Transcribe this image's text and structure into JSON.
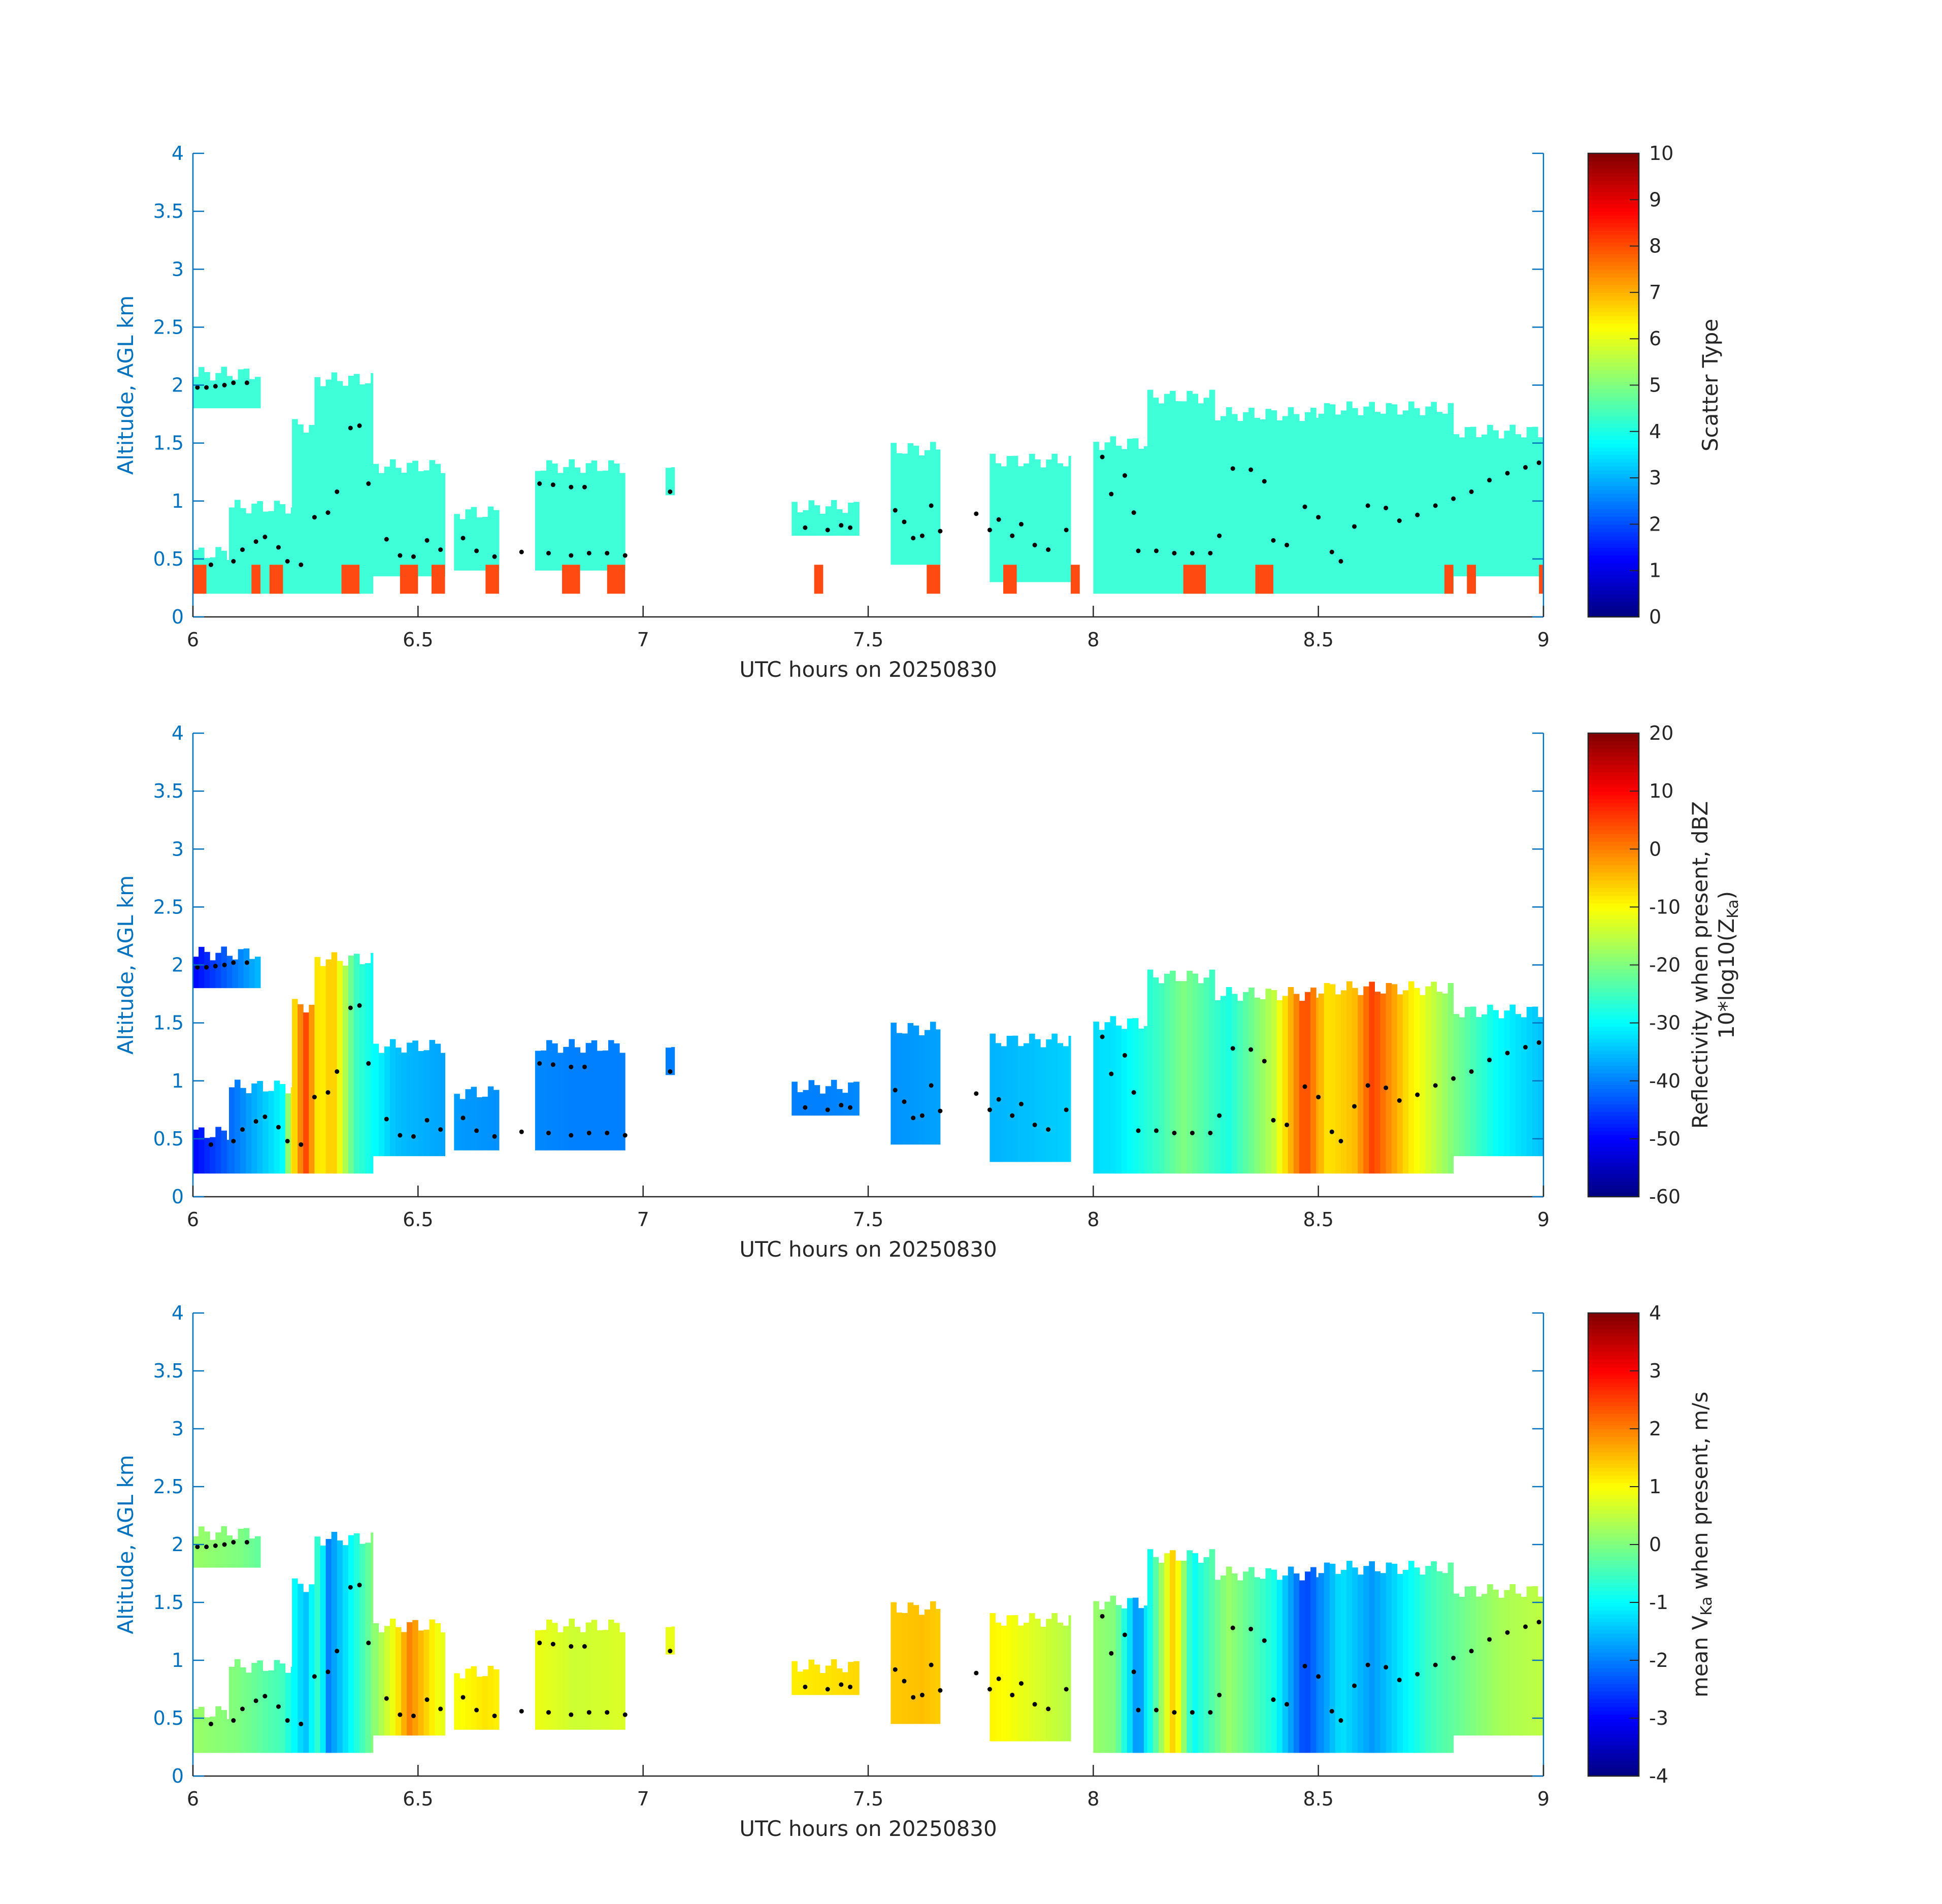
{
  "colors": {
    "axis_y": "#0072BD",
    "axis_x": "#262626",
    "scatter_fill": "#3FFFD9",
    "surface_fill": "#FF4A12",
    "marker": "#000000",
    "colormap": "jet"
  },
  "chart_data": [
    {
      "type": "heatmap",
      "xlabel": "UTC hours on 20250830",
      "ylabel": "Altitude, AGL km",
      "xlim": [
        6,
        9
      ],
      "ylim": [
        0,
        4
      ],
      "xticks": [
        "6",
        "6.5",
        "7",
        "7.5",
        "8",
        "8.5",
        "9"
      ],
      "yticks": [
        "0",
        "0.5",
        "1",
        "1.5",
        "2",
        "2.5",
        "3",
        "3.5",
        "4"
      ],
      "colorbar": {
        "label": "Scatter Type",
        "range": [
          0,
          10
        ],
        "ticks": [
          "0",
          "1",
          "2",
          "3",
          "4",
          "5",
          "6",
          "7",
          "8",
          "9",
          "10"
        ]
      },
      "cloud_segments": [
        {
          "x0": 6.0,
          "x1": 6.15,
          "bottom": 1.8,
          "top": 2.1
        },
        {
          "x0": 6.0,
          "x1": 6.08,
          "bottom": 0.2,
          "top": 0.55
        },
        {
          "x0": 6.08,
          "x1": 6.22,
          "bottom": 0.2,
          "top": 0.95
        },
        {
          "x0": 6.22,
          "x1": 6.27,
          "bottom": 0.2,
          "top": 1.65
        },
        {
          "x0": 6.27,
          "x1": 6.4,
          "bottom": 0.2,
          "top": 2.05
        },
        {
          "x0": 6.4,
          "x1": 6.56,
          "bottom": 0.35,
          "top": 1.3
        },
        {
          "x0": 6.58,
          "x1": 6.68,
          "bottom": 0.4,
          "top": 0.9
        },
        {
          "x0": 6.76,
          "x1": 6.96,
          "bottom": 0.4,
          "top": 1.3
        },
        {
          "x0": 7.05,
          "x1": 7.07,
          "bottom": 1.05,
          "top": 1.25
        },
        {
          "x0": 7.33,
          "x1": 7.48,
          "bottom": 0.7,
          "top": 0.95
        },
        {
          "x0": 7.55,
          "x1": 7.66,
          "bottom": 0.45,
          "top": 1.45
        },
        {
          "x0": 7.77,
          "x1": 7.95,
          "bottom": 0.3,
          "top": 1.35
        },
        {
          "x0": 8.0,
          "x1": 8.12,
          "bottom": 0.2,
          "top": 1.5
        },
        {
          "x0": 8.12,
          "x1": 8.27,
          "bottom": 0.2,
          "top": 1.9
        },
        {
          "x0": 8.27,
          "x1": 8.5,
          "bottom": 0.2,
          "top": 1.75
        },
        {
          "x0": 8.5,
          "x1": 8.8,
          "bottom": 0.2,
          "top": 1.8
        },
        {
          "x0": 8.8,
          "x1": 9.0,
          "bottom": 0.35,
          "top": 1.6
        }
      ],
      "surface_class_segments": [
        {
          "x0": 6.0,
          "x1": 6.03
        },
        {
          "x0": 6.13,
          "x1": 6.15
        },
        {
          "x0": 6.17,
          "x1": 6.2
        },
        {
          "x0": 6.33,
          "x1": 6.37
        },
        {
          "x0": 6.46,
          "x1": 6.5
        },
        {
          "x0": 6.53,
          "x1": 6.56
        },
        {
          "x0": 6.65,
          "x1": 6.68
        },
        {
          "x0": 6.82,
          "x1": 6.86
        },
        {
          "x0": 6.92,
          "x1": 6.96
        },
        {
          "x0": 7.38,
          "x1": 7.4
        },
        {
          "x0": 7.63,
          "x1": 7.66
        },
        {
          "x0": 7.8,
          "x1": 7.83
        },
        {
          "x0": 7.95,
          "x1": 7.97
        },
        {
          "x0": 8.2,
          "x1": 8.25
        },
        {
          "x0": 8.36,
          "x1": 8.4
        },
        {
          "x0": 8.78,
          "x1": 8.8
        },
        {
          "x0": 8.83,
          "x1": 8.85
        },
        {
          "x0": 8.99,
          "x1": 9.0
        }
      ]
    },
    {
      "type": "heatmap",
      "xlabel": "UTC hours on 20250830",
      "ylabel": "Altitude, AGL km",
      "xlim": [
        6,
        9
      ],
      "ylim": [
        0,
        4
      ],
      "xticks": [
        "6",
        "6.5",
        "7",
        "7.5",
        "8",
        "8.5",
        "9"
      ],
      "yticks": [
        "0",
        "0.5",
        "1",
        "1.5",
        "2",
        "2.5",
        "3",
        "3.5",
        "4"
      ],
      "colorbar": {
        "label_line1": "Reflectivity when present, dBZ",
        "label_line2_pre": "10*log10(Z",
        "label_line2_sub": "Ka",
        "label_line2_post": ")",
        "range": [
          -60,
          20
        ],
        "ticks": [
          "-60",
          "-50",
          "-40",
          "-30",
          "-20",
          "-10",
          "0",
          "10",
          "20"
        ]
      },
      "color_profile": [
        {
          "x": 6.0,
          "value": -50
        },
        {
          "x": 6.05,
          "value": -45
        },
        {
          "x": 6.1,
          "value": -40
        },
        {
          "x": 6.15,
          "value": -35
        },
        {
          "x": 6.2,
          "value": -30
        },
        {
          "x": 6.22,
          "value": -10
        },
        {
          "x": 6.25,
          "value": 5
        },
        {
          "x": 6.28,
          "value": -10
        },
        {
          "x": 6.31,
          "value": -5
        },
        {
          "x": 6.36,
          "value": -25
        },
        {
          "x": 6.45,
          "value": -35
        },
        {
          "x": 6.6,
          "value": -38
        },
        {
          "x": 6.85,
          "value": -40
        },
        {
          "x": 7.4,
          "value": -40
        },
        {
          "x": 7.6,
          "value": -38
        },
        {
          "x": 7.85,
          "value": -35
        },
        {
          "x": 8.05,
          "value": -32
        },
        {
          "x": 8.15,
          "value": -25
        },
        {
          "x": 8.2,
          "value": -20
        },
        {
          "x": 8.3,
          "value": -28
        },
        {
          "x": 8.4,
          "value": -15
        },
        {
          "x": 8.47,
          "value": 5
        },
        {
          "x": 8.52,
          "value": -8
        },
        {
          "x": 8.58,
          "value": -5
        },
        {
          "x": 8.62,
          "value": 5
        },
        {
          "x": 8.7,
          "value": -8
        },
        {
          "x": 8.8,
          "value": -20
        },
        {
          "x": 8.9,
          "value": -30
        },
        {
          "x": 9.0,
          "value": -35
        }
      ]
    },
    {
      "type": "heatmap",
      "xlabel": "UTC hours on 20250830",
      "ylabel": "Altitude, AGL km",
      "xlim": [
        6,
        9
      ],
      "ylim": [
        0,
        4
      ],
      "xticks": [
        "6",
        "6.5",
        "7",
        "7.5",
        "8",
        "8.5",
        "9"
      ],
      "yticks": [
        "0",
        "0.5",
        "1",
        "1.5",
        "2",
        "2.5",
        "3",
        "3.5",
        "4"
      ],
      "colorbar": {
        "label_pre": "mean V",
        "label_sub": "Ka",
        "label_post": " when present, m/s",
        "range": [
          -4,
          4
        ],
        "ticks": [
          "-4",
          "-3",
          "-2",
          "-1",
          "0",
          "1",
          "2",
          "3",
          "4"
        ]
      },
      "color_profile": [
        {
          "x": 6.0,
          "value": 0.2
        },
        {
          "x": 6.1,
          "value": 0.0
        },
        {
          "x": 6.2,
          "value": -0.5
        },
        {
          "x": 6.25,
          "value": -1.5
        },
        {
          "x": 6.28,
          "value": -0.5
        },
        {
          "x": 6.3,
          "value": -2.0
        },
        {
          "x": 6.35,
          "value": -1.0
        },
        {
          "x": 6.45,
          "value": 1.0
        },
        {
          "x": 6.48,
          "value": 2.0
        },
        {
          "x": 6.55,
          "value": 0.8
        },
        {
          "x": 6.65,
          "value": 1.2
        },
        {
          "x": 6.85,
          "value": 0.6
        },
        {
          "x": 7.4,
          "value": 1.2
        },
        {
          "x": 7.62,
          "value": 1.5
        },
        {
          "x": 7.8,
          "value": 1.0
        },
        {
          "x": 8.05,
          "value": 0.0
        },
        {
          "x": 8.1,
          "value": -2.0
        },
        {
          "x": 8.18,
          "value": 1.5
        },
        {
          "x": 8.22,
          "value": -1.0
        },
        {
          "x": 8.3,
          "value": 0.2
        },
        {
          "x": 8.4,
          "value": -0.8
        },
        {
          "x": 8.47,
          "value": -2.5
        },
        {
          "x": 8.55,
          "value": -1.2
        },
        {
          "x": 8.62,
          "value": -1.8
        },
        {
          "x": 8.75,
          "value": -0.5
        },
        {
          "x": 8.9,
          "value": 0.3
        },
        {
          "x": 9.0,
          "value": 0.5
        }
      ]
    }
  ],
  "marker_points": [
    {
      "x": 6.01,
      "y": 1.98
    },
    {
      "x": 6.03,
      "y": 1.98
    },
    {
      "x": 6.05,
      "y": 1.99
    },
    {
      "x": 6.07,
      "y": 2.0
    },
    {
      "x": 6.09,
      "y": 2.02
    },
    {
      "x": 6.12,
      "y": 2.02
    },
    {
      "x": 6.04,
      "y": 0.45
    },
    {
      "x": 6.09,
      "y": 0.48
    },
    {
      "x": 6.11,
      "y": 0.58
    },
    {
      "x": 6.14,
      "y": 0.65
    },
    {
      "x": 6.16,
      "y": 0.69
    },
    {
      "x": 6.19,
      "y": 0.6
    },
    {
      "x": 6.21,
      "y": 0.48
    },
    {
      "x": 6.24,
      "y": 0.45
    },
    {
      "x": 6.27,
      "y": 0.86
    },
    {
      "x": 6.3,
      "y": 0.9
    },
    {
      "x": 6.32,
      "y": 1.08
    },
    {
      "x": 6.35,
      "y": 1.63
    },
    {
      "x": 6.37,
      "y": 1.65
    },
    {
      "x": 6.39,
      "y": 1.15
    },
    {
      "x": 6.43,
      "y": 0.67
    },
    {
      "x": 6.46,
      "y": 0.53
    },
    {
      "x": 6.49,
      "y": 0.52
    },
    {
      "x": 6.52,
      "y": 0.66
    },
    {
      "x": 6.55,
      "y": 0.58
    },
    {
      "x": 6.6,
      "y": 0.68
    },
    {
      "x": 6.63,
      "y": 0.57
    },
    {
      "x": 6.67,
      "y": 0.52
    },
    {
      "x": 6.73,
      "y": 0.56
    },
    {
      "x": 6.77,
      "y": 1.15
    },
    {
      "x": 6.8,
      "y": 1.14
    },
    {
      "x": 6.84,
      "y": 1.12
    },
    {
      "x": 6.87,
      "y": 1.12
    },
    {
      "x": 6.79,
      "y": 0.55
    },
    {
      "x": 6.84,
      "y": 0.53
    },
    {
      "x": 6.88,
      "y": 0.55
    },
    {
      "x": 6.92,
      "y": 0.55
    },
    {
      "x": 6.96,
      "y": 0.53
    },
    {
      "x": 7.06,
      "y": 1.08
    },
    {
      "x": 7.36,
      "y": 0.77
    },
    {
      "x": 7.41,
      "y": 0.75
    },
    {
      "x": 7.44,
      "y": 0.79
    },
    {
      "x": 7.46,
      "y": 0.77
    },
    {
      "x": 7.56,
      "y": 0.92
    },
    {
      "x": 7.58,
      "y": 0.82
    },
    {
      "x": 7.6,
      "y": 0.68
    },
    {
      "x": 7.62,
      "y": 0.7
    },
    {
      "x": 7.64,
      "y": 0.96
    },
    {
      "x": 7.66,
      "y": 0.74
    },
    {
      "x": 7.74,
      "y": 0.89
    },
    {
      "x": 7.77,
      "y": 0.75
    },
    {
      "x": 7.79,
      "y": 0.84
    },
    {
      "x": 7.82,
      "y": 0.7
    },
    {
      "x": 7.84,
      "y": 0.8
    },
    {
      "x": 7.87,
      "y": 0.62
    },
    {
      "x": 7.9,
      "y": 0.58
    },
    {
      "x": 7.94,
      "y": 0.75
    },
    {
      "x": 8.02,
      "y": 1.38
    },
    {
      "x": 8.04,
      "y": 1.06
    },
    {
      "x": 8.07,
      "y": 1.22
    },
    {
      "x": 8.09,
      "y": 0.9
    },
    {
      "x": 8.1,
      "y": 0.57
    },
    {
      "x": 8.14,
      "y": 0.57
    },
    {
      "x": 8.18,
      "y": 0.55
    },
    {
      "x": 8.22,
      "y": 0.55
    },
    {
      "x": 8.26,
      "y": 0.55
    },
    {
      "x": 8.28,
      "y": 0.7
    },
    {
      "x": 8.31,
      "y": 1.28
    },
    {
      "x": 8.35,
      "y": 1.27
    },
    {
      "x": 8.38,
      "y": 1.17
    },
    {
      "x": 8.4,
      "y": 0.66
    },
    {
      "x": 8.43,
      "y": 0.62
    },
    {
      "x": 8.47,
      "y": 0.95
    },
    {
      "x": 8.5,
      "y": 0.86
    },
    {
      "x": 8.53,
      "y": 0.56
    },
    {
      "x": 8.55,
      "y": 0.48
    },
    {
      "x": 8.58,
      "y": 0.78
    },
    {
      "x": 8.61,
      "y": 0.96
    },
    {
      "x": 8.65,
      "y": 0.94
    },
    {
      "x": 8.68,
      "y": 0.83
    },
    {
      "x": 8.72,
      "y": 0.88
    },
    {
      "x": 8.76,
      "y": 0.96
    },
    {
      "x": 8.8,
      "y": 1.02
    },
    {
      "x": 8.84,
      "y": 1.08
    },
    {
      "x": 8.88,
      "y": 1.18
    },
    {
      "x": 8.92,
      "y": 1.24
    },
    {
      "x": 8.96,
      "y": 1.29
    },
    {
      "x": 8.99,
      "y": 1.33
    }
  ]
}
